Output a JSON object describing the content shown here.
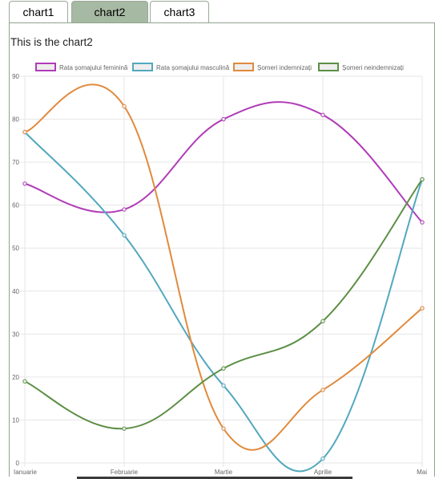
{
  "tabs": [
    {
      "label": "chart1",
      "active": false
    },
    {
      "label": "chart2",
      "active": true
    },
    {
      "label": "chart3",
      "active": false
    }
  ],
  "panel": {
    "title": "This is the chart2"
  },
  "chart_data": {
    "type": "line",
    "categories": [
      "Ianuarie",
      "Februarie",
      "Martie",
      "Aprilie",
      "Mai"
    ],
    "ylim": [
      0,
      90
    ],
    "yticks": [
      0,
      10,
      20,
      30,
      40,
      50,
      60,
      70,
      80,
      90
    ],
    "grid": true,
    "legend_position": "top",
    "series": [
      {
        "name": "Rata șomajului feminină",
        "color": "#b03cb8",
        "values": [
          65,
          59,
          80,
          81,
          56
        ]
      },
      {
        "name": "Rata șomajului masculină",
        "color": "#52a8be",
        "values": [
          77,
          53,
          18,
          1,
          66
        ]
      },
      {
        "name": "Șomeri indemnizați",
        "color": "#e08a3c",
        "values": [
          77,
          83,
          8,
          17,
          36
        ]
      },
      {
        "name": "Șomeri neindemnizați",
        "color": "#5c8f45",
        "values": [
          19,
          8,
          22,
          33,
          66
        ]
      }
    ]
  }
}
